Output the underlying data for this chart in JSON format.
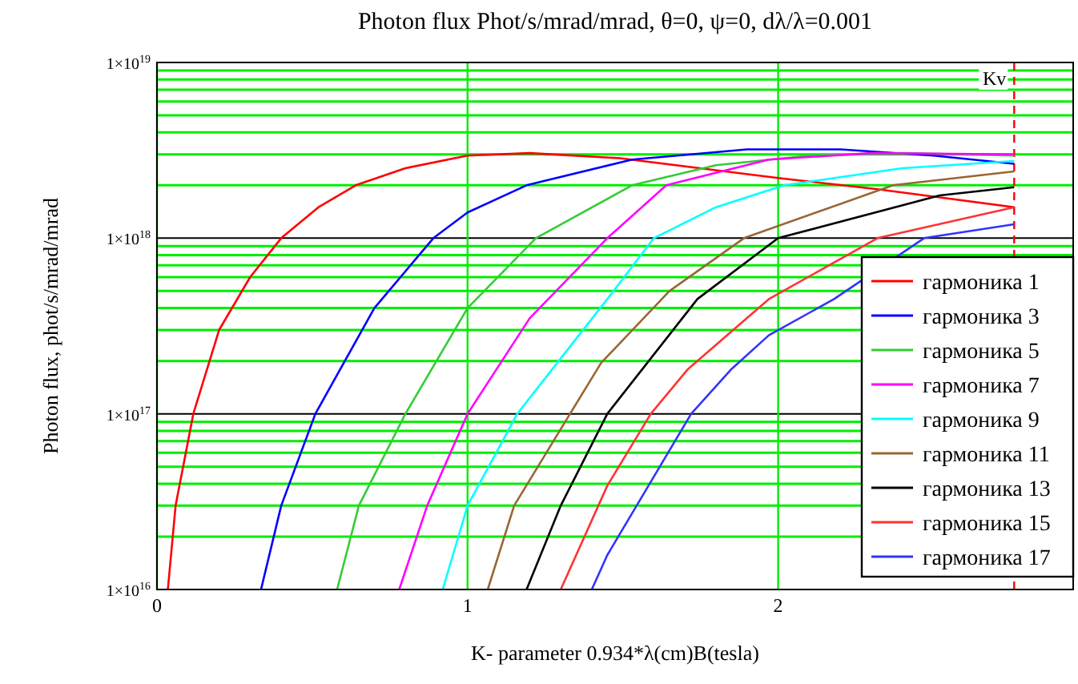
{
  "chart_data": {
    "type": "line",
    "title": "Photon flux Phot/s/mrad/mrad, θ=0, ψ=0, dλ/λ=0.001",
    "xlabel": "K- parameter 0.934*λ(cm)B(tesla)",
    "ylabel": "Photon flux, phot/s/mrad/mrad",
    "log": "y",
    "grid": true,
    "legend": "bottom right",
    "line_style": "solid",
    "xlim": [
      0,
      2.95
    ],
    "xticks": [
      0,
      1,
      2
    ],
    "ylim": [
      1e+16,
      1e+19
    ],
    "yticks": [
      {
        "value": 1e+16,
        "label": "1×10$^{16}$"
      },
      {
        "value": 2e+16,
        "label": null
      },
      {
        "value": 3e+16,
        "label": null
      },
      {
        "value": 4e+16,
        "label": null
      },
      {
        "value": 5e+16,
        "label": null
      },
      {
        "value": 6e+16,
        "label": null
      },
      {
        "value": 7e+16,
        "label": null
      },
      {
        "value": 8e+16,
        "label": null
      },
      {
        "value": 9e+16,
        "label": null
      },
      {
        "value": 1e+17,
        "label": "1×10$^{17}$"
      },
      {
        "value": 2e+17,
        "label": null
      },
      {
        "value": 3e+17,
        "label": null
      },
      {
        "value": 4e+17,
        "label": null
      },
      {
        "value": 5e+17,
        "label": null
      },
      {
        "value": 6e+17,
        "label": null
      },
      {
        "value": 7e+17,
        "label": null
      },
      {
        "value": 8e+17,
        "label": null
      },
      {
        "value": 9e+17,
        "label": null
      },
      {
        "value": 1e+18,
        "label": "1×10$^{18}$"
      },
      {
        "value": 2e+18,
        "label": null
      },
      {
        "value": 3e+18,
        "label": null
      },
      {
        "value": 4e+18,
        "label": null
      },
      {
        "value": 5e+18,
        "label": null
      },
      {
        "value": 6e+18,
        "label": null
      },
      {
        "value": 7e+18,
        "label": null
      },
      {
        "value": 8e+18,
        "label": null
      },
      {
        "value": 9e+18,
        "label": null
      },
      {
        "value": 1e+19,
        "label": "1×10$^{19}$"
      }
    ],
    "ref_lines": [
      {
        "axis": "x",
        "value": 2.76,
        "label": "Kv",
        "color": "#ff0000",
        "line_style": "dashed"
      }
    ],
    "series": [
      {
        "name": "гармоника 1",
        "color": "#ff0000",
        "x": [
          0.035,
          0.06,
          0.117,
          0.2,
          0.3,
          0.4,
          0.52,
          0.64,
          0.8,
          1.0,
          1.2,
          1.49,
          2.0,
          2.32,
          2.76
        ],
        "values": [
          1e+16,
          3e+16,
          1e+17,
          3e+17,
          6e+17,
          1e+18,
          1.5e+18,
          2e+18,
          2.5e+18,
          2.95e+18,
          3.05e+18,
          2.85e+18,
          2.2e+18,
          1.9e+18,
          1.5e+18
        ]
      },
      {
        "name": "гармоника 3",
        "color": "#0000ff",
        "x": [
          0.335,
          0.4,
          0.51,
          0.7,
          0.89,
          1.0,
          1.19,
          1.53,
          1.9,
          2.2,
          2.5,
          2.76
        ],
        "values": [
          1e+16,
          3e+16,
          1e+17,
          4e+17,
          1e+18,
          1.4e+18,
          2e+18,
          2.8e+18,
          3.2e+18,
          3.2e+18,
          2.95e+18,
          2.65e+18
        ]
      },
      {
        "name": "гармоника 5",
        "color": "#33cc33",
        "x": [
          0.58,
          0.65,
          0.8,
          1.0,
          1.22,
          1.53,
          1.8,
          2.1,
          2.4,
          2.76
        ],
        "values": [
          1e+16,
          3e+16,
          1e+17,
          4e+17,
          1e+18,
          2e+18,
          2.6e+18,
          2.95e+18,
          3.05e+18,
          2.95e+18
        ]
      },
      {
        "name": "гармоника 7",
        "color": "#ff00ff",
        "x": [
          0.78,
          0.87,
          1.0,
          1.2,
          1.45,
          1.64,
          1.97,
          2.3,
          2.76
        ],
        "values": [
          1e+16,
          3e+16,
          1e+17,
          3.5e+17,
          1e+18,
          2e+18,
          2.8e+18,
          3.05e+18,
          3e+18
        ]
      },
      {
        "name": "гармоника 9",
        "color": "#00ffff",
        "x": [
          0.92,
          1.0,
          1.16,
          1.45,
          1.6,
          1.8,
          2.02,
          2.4,
          2.76
        ],
        "values": [
          1e+16,
          3e+16,
          1e+17,
          4.5e+17,
          1e+18,
          1.5e+18,
          2e+18,
          2.5e+18,
          2.75e+18
        ]
      },
      {
        "name": "гармоника 11",
        "color": "#996633",
        "x": [
          1.065,
          1.15,
          1.33,
          1.43,
          1.65,
          1.89,
          2.37,
          2.76
        ],
        "values": [
          1e+16,
          3e+16,
          1e+17,
          1.95e+17,
          5e+17,
          1e+18,
          2e+18,
          2.4e+18
        ]
      },
      {
        "name": "гармоника 13",
        "color": "#000000",
        "x": [
          1.19,
          1.3,
          1.45,
          1.74,
          2.0,
          2.52,
          2.76
        ],
        "values": [
          1e+16,
          3e+16,
          1e+17,
          4.5e+17,
          1e+18,
          1.75e+18,
          1.95e+18
        ]
      },
      {
        "name": "гармоника 15",
        "color": "#ff3333",
        "x": [
          1.3,
          1.45,
          1.59,
          1.71,
          1.97,
          2.32,
          2.76
        ],
        "values": [
          1e+16,
          3.9e+16,
          1e+17,
          1.8e+17,
          4.5e+17,
          1e+18,
          1.5e+18
        ]
      },
      {
        "name": "гармоника 17",
        "color": "#3333ff",
        "x": [
          1.4,
          1.45,
          1.72,
          1.85,
          1.97,
          2.18,
          2.47,
          2.76
        ],
        "values": [
          1e+16,
          1.57e+16,
          1e+17,
          1.8e+17,
          2.8e+17,
          4.5e+17,
          1e+18,
          1.2e+18
        ]
      }
    ]
  }
}
